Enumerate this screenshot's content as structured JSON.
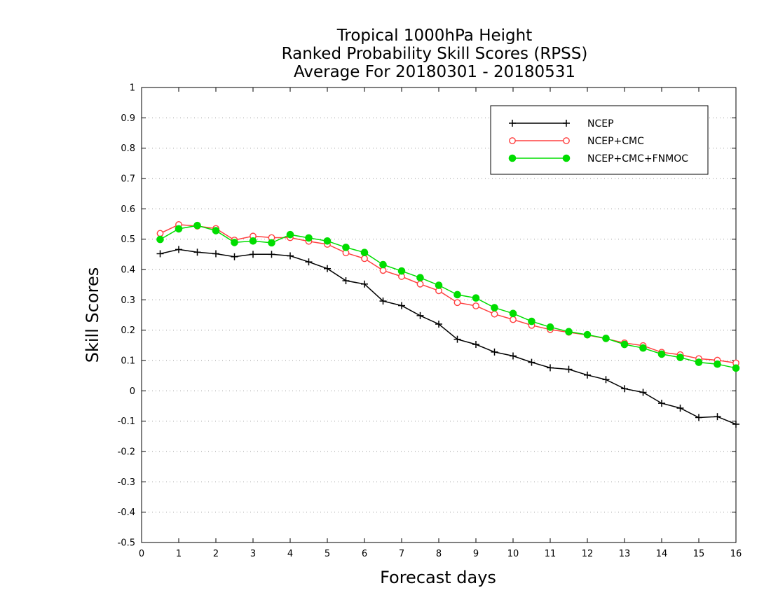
{
  "chart_data": {
    "type": "line",
    "title": [
      "Tropical 1000hPa Height",
      "Ranked Probability Skill Scores (RPSS)",
      "Average For 20180301 - 20180531"
    ],
    "xlabel": "Forecast days",
    "ylabel": "Skill Scores",
    "xlim": [
      0,
      16
    ],
    "ylim": [
      -0.5,
      1
    ],
    "xticks": [
      "0",
      "1",
      "2",
      "3",
      "4",
      "5",
      "6",
      "7",
      "8",
      "9",
      "10",
      "11",
      "12",
      "13",
      "14",
      "15",
      "16"
    ],
    "yticks": [
      "-0.5",
      "-0.4",
      "-0.3",
      "-0.2",
      "-0.1",
      "0",
      "0.1",
      "0.2",
      "0.3",
      "0.4",
      "0.5",
      "0.6",
      "0.7",
      "0.8",
      "0.9",
      "1"
    ],
    "grid": "horizontal-dotted",
    "legend_position": "top-right",
    "x": [
      0.5,
      1,
      1.5,
      2,
      2.5,
      3,
      3.5,
      4,
      4.5,
      5,
      5.5,
      6,
      6.5,
      7,
      7.5,
      8,
      8.5,
      9,
      9.5,
      10,
      10.5,
      11,
      11.5,
      12,
      12.5,
      13,
      13.5,
      14,
      14.5,
      15,
      15.5,
      16
    ],
    "series": [
      {
        "name": "NCEP",
        "color": "#000000",
        "marker": "plus",
        "values": [
          0.452,
          0.466,
          0.457,
          0.452,
          0.442,
          0.45,
          0.45,
          0.445,
          0.425,
          0.403,
          0.363,
          0.352,
          0.296,
          0.281,
          0.248,
          0.22,
          0.17,
          0.153,
          0.128,
          0.115,
          0.094,
          0.076,
          0.071,
          0.052,
          0.037,
          0.007,
          -0.005,
          -0.041,
          -0.057,
          -0.088,
          -0.085,
          -0.11
        ]
      },
      {
        "name": "NCEP+CMC",
        "color": "#ff4040",
        "marker": "open-circle",
        "values": [
          0.519,
          0.548,
          0.543,
          0.535,
          0.497,
          0.51,
          0.505,
          0.505,
          0.493,
          0.483,
          0.455,
          0.436,
          0.397,
          0.377,
          0.352,
          0.33,
          0.291,
          0.28,
          0.253,
          0.235,
          0.216,
          0.202,
          0.193,
          0.184,
          0.172,
          0.158,
          0.149,
          0.127,
          0.119,
          0.106,
          0.101,
          0.092
        ]
      },
      {
        "name": "NCEP+CMC+FNMOC",
        "color": "#00dd00",
        "marker": "filled-circle",
        "values": [
          0.499,
          0.534,
          0.545,
          0.528,
          0.489,
          0.494,
          0.488,
          0.515,
          0.504,
          0.494,
          0.473,
          0.456,
          0.416,
          0.395,
          0.373,
          0.348,
          0.317,
          0.306,
          0.274,
          0.255,
          0.229,
          0.21,
          0.195,
          0.185,
          0.173,
          0.153,
          0.141,
          0.121,
          0.11,
          0.094,
          0.088,
          0.075
        ]
      }
    ]
  }
}
